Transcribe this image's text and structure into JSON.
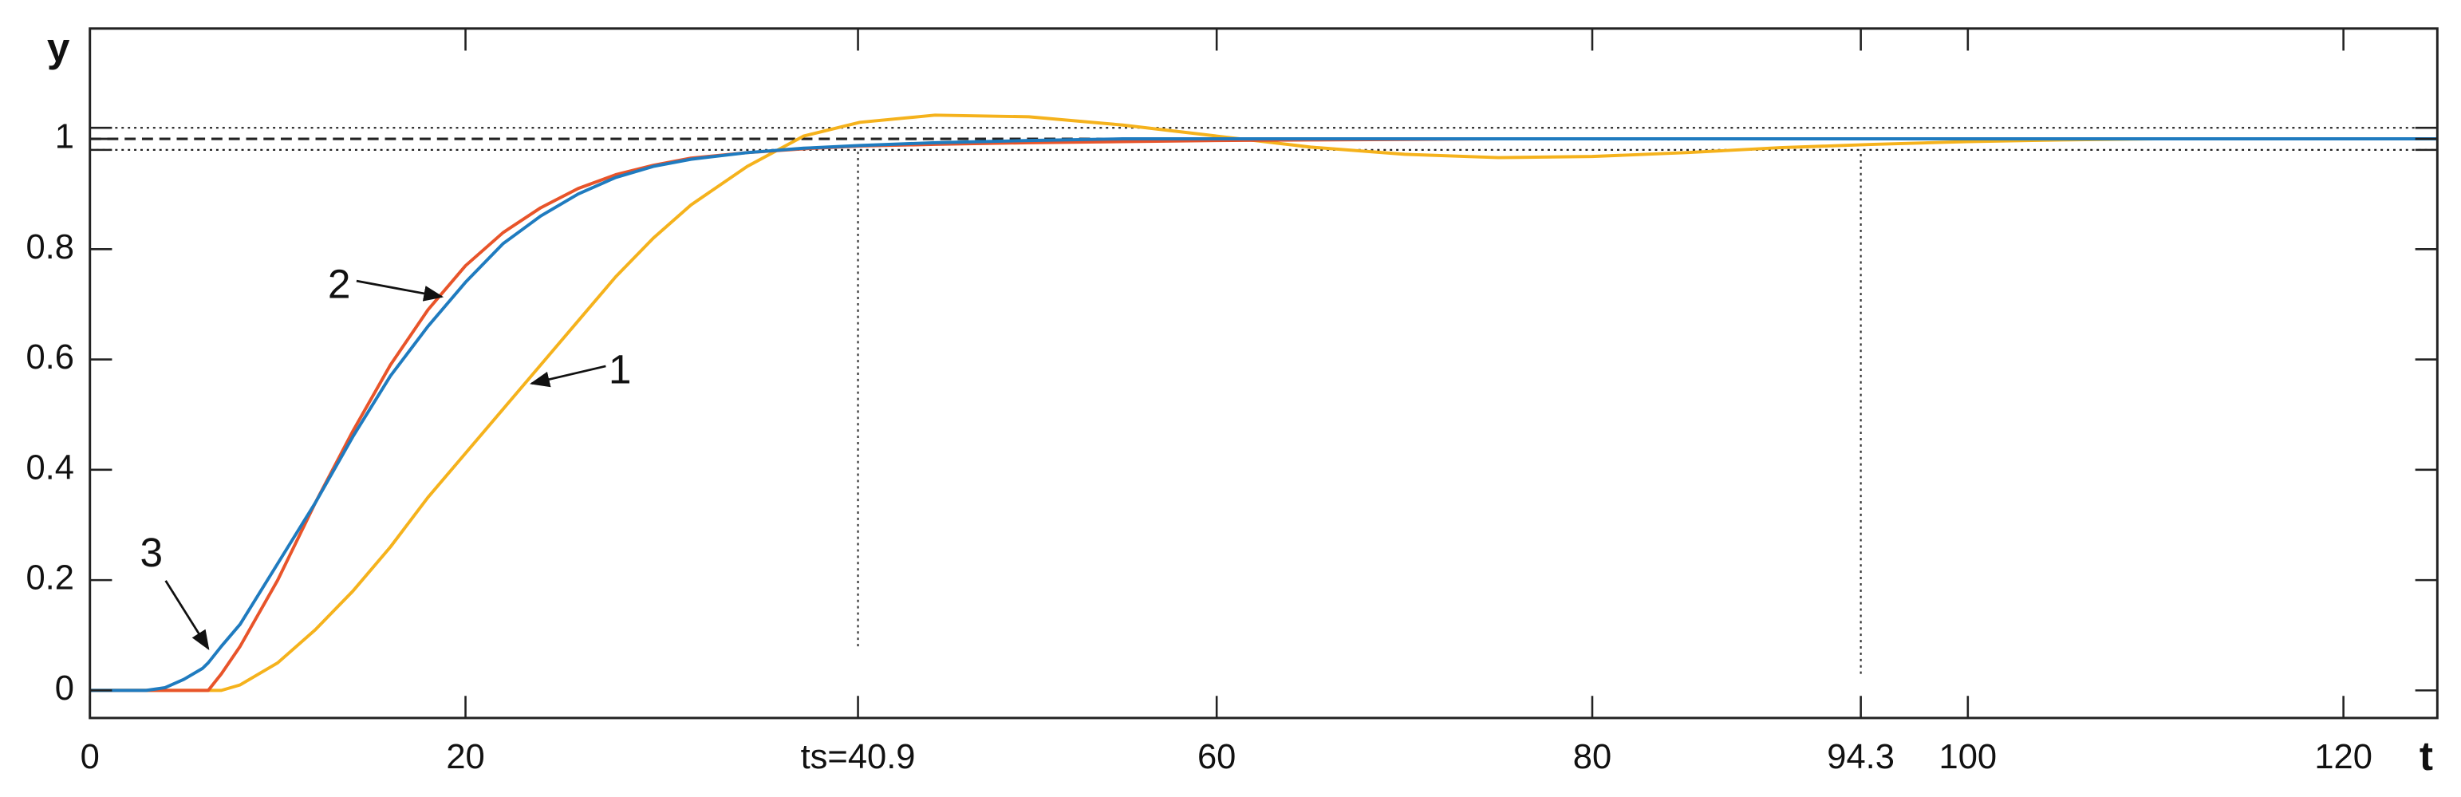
{
  "chart_data": {
    "type": "line",
    "x_label": "t",
    "y_label": "y",
    "x": [
      0,
      3,
      4,
      5,
      6,
      6.3,
      7,
      8,
      10,
      12,
      14,
      16,
      18,
      20,
      22,
      24,
      26,
      28,
      30,
      32,
      35,
      38,
      41,
      45,
      50,
      55,
      60,
      65,
      70,
      75,
      80,
      85,
      90,
      95,
      100,
      105,
      110,
      115,
      120,
      125
    ],
    "series": [
      {
        "name": "1",
        "color": "#f5b21c",
        "values": [
          0,
          0,
          0,
          0,
          0,
          0,
          0,
          0.01,
          0.05,
          0.11,
          0.18,
          0.26,
          0.35,
          0.43,
          0.51,
          0.59,
          0.67,
          0.75,
          0.82,
          0.88,
          0.95,
          1.005,
          1.03,
          1.043,
          1.04,
          1.025,
          1.005,
          0.985,
          0.972,
          0.966,
          0.968,
          0.975,
          0.984,
          0.99,
          0.995,
          0.998,
          1,
          1,
          1,
          1
        ]
      },
      {
        "name": "2",
        "color": "#e8542a",
        "values": [
          0,
          0,
          0,
          0,
          0,
          0,
          0.03,
          0.08,
          0.2,
          0.34,
          0.47,
          0.59,
          0.69,
          0.77,
          0.83,
          0.875,
          0.91,
          0.935,
          0.952,
          0.965,
          0.975,
          0.982,
          0.987,
          0.99,
          0.993,
          0.995,
          0.997,
          0.998,
          0.999,
          1,
          1,
          1,
          1,
          1,
          1,
          1,
          1,
          1,
          1,
          1
        ]
      },
      {
        "name": "3",
        "color": "#1f7bbf",
        "values": [
          0,
          0,
          0.005,
          0.02,
          0.04,
          0.05,
          0.08,
          0.12,
          0.23,
          0.34,
          0.46,
          0.57,
          0.66,
          0.74,
          0.81,
          0.86,
          0.9,
          0.93,
          0.95,
          0.963,
          0.975,
          0.983,
          0.988,
          0.993,
          0.997,
          1,
          1,
          1,
          1,
          1,
          1,
          1,
          1,
          1,
          1,
          1,
          1,
          1,
          1,
          1
        ]
      }
    ],
    "xlim": [
      0,
      125
    ],
    "ylim": [
      -0.05,
      1.2
    ],
    "xticks": [
      0,
      20,
      {
        "value": 40.9,
        "label": "ts=40.9"
      },
      60,
      80,
      94.3,
      100,
      120
    ],
    "yticks": [
      0,
      0.2,
      0.4,
      0.6,
      0.8,
      1
    ],
    "hlines": [
      {
        "value": 1,
        "style": "dashed"
      },
      {
        "value": 1.02,
        "style": "dotted"
      },
      {
        "value": 0.98,
        "style": "dotted"
      }
    ],
    "vlines": [
      {
        "x": 40.9,
        "y": [
          0.08,
          0.98
        ]
      },
      {
        "x": 94.3,
        "y": [
          0.03,
          0.98
        ]
      }
    ],
    "grid": false
  }
}
